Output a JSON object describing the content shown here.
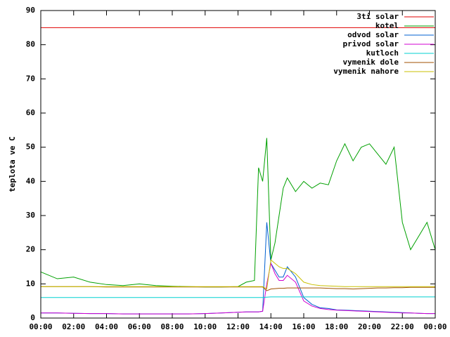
{
  "chart_data": {
    "type": "line",
    "ylabel": "teplota ve C",
    "x": [
      0,
      1,
      2,
      3,
      4,
      5,
      6,
      7,
      8,
      9,
      10,
      11,
      12,
      12.5,
      13,
      13.25,
      13.5,
      13.75,
      14,
      14.25,
      14.5,
      14.75,
      15,
      15.5,
      16,
      16.5,
      17,
      17.5,
      18,
      18.5,
      19,
      19.5,
      20,
      20.5,
      21,
      21.5,
      22,
      22.5,
      23,
      23.5,
      24
    ],
    "xlim": [
      0,
      24
    ],
    "xticks": [
      {
        "value": 0,
        "label": "00:00"
      },
      {
        "value": 2,
        "label": "02:00"
      },
      {
        "value": 4,
        "label": "04:00"
      },
      {
        "value": 6,
        "label": "06:00"
      },
      {
        "value": 8,
        "label": "08:00"
      },
      {
        "value": 10,
        "label": "10:00"
      },
      {
        "value": 12,
        "label": "12:00"
      },
      {
        "value": 14,
        "label": "14:00"
      },
      {
        "value": 16,
        "label": "16:00"
      },
      {
        "value": 18,
        "label": "18:00"
      },
      {
        "value": 20,
        "label": "20:00"
      },
      {
        "value": 22,
        "label": "22:00"
      },
      {
        "value": 24,
        "label": "00:00"
      }
    ],
    "ylim": [
      0,
      90
    ],
    "yticks": [
      0,
      10,
      20,
      30,
      40,
      50,
      60,
      70,
      80,
      90
    ],
    "legend": "upper right",
    "series": [
      {
        "name": "3ti solar",
        "color": "#e00000",
        "values": [
          85,
          85,
          85,
          85,
          85,
          85,
          85,
          85,
          85,
          85,
          85,
          85,
          85,
          85,
          85,
          85,
          85,
          85,
          85,
          85,
          85,
          85,
          85,
          85,
          85,
          85,
          85,
          85,
          85,
          85,
          85,
          85,
          85,
          85,
          85,
          85,
          85,
          85,
          85,
          85,
          85
        ]
      },
      {
        "name": "kotel",
        "color": "#00a000",
        "values": [
          13.5,
          11.5,
          12,
          10.5,
          9.8,
          9.5,
          10,
          9.5,
          9.3,
          9.2,
          9.1,
          9.1,
          9.2,
          10.5,
          11,
          44,
          40,
          52.7,
          17,
          22,
          30,
          38,
          41,
          37,
          40,
          38,
          39.5,
          39,
          46,
          51,
          46,
          50,
          51,
          48,
          45,
          50,
          28,
          20,
          24,
          28,
          20
        ]
      },
      {
        "name": "odvod solar",
        "color": "#0060d0",
        "values": [
          1.5,
          1.5,
          1.4,
          1.3,
          1.3,
          1.2,
          1.2,
          1.2,
          1.2,
          1.2,
          1.3,
          1.5,
          1.7,
          1.8,
          1.8,
          1.8,
          2,
          28,
          16,
          14,
          12,
          12,
          15,
          12,
          6,
          4,
          3,
          2.8,
          2.4,
          2.3,
          2.2,
          2.1,
          2,
          1.9,
          1.8,
          1.7,
          1.6,
          1.5,
          1.4,
          1.3,
          1.3
        ]
      },
      {
        "name": "privod solar",
        "color": "#d000d0",
        "values": [
          1.5,
          1.5,
          1.4,
          1.3,
          1.3,
          1.2,
          1.2,
          1.2,
          1.2,
          1.2,
          1.3,
          1.5,
          1.7,
          1.8,
          1.8,
          1.8,
          2,
          10,
          16,
          13,
          11,
          11,
          12.5,
          10.5,
          5,
          3.5,
          2.8,
          2.5,
          2.3,
          2.2,
          2.1,
          2,
          1.9,
          1.8,
          1.7,
          1.6,
          1.5,
          1.5,
          1.4,
          1.3,
          1.3
        ]
      },
      {
        "name": "kutloch",
        "color": "#00d0d0",
        "values": [
          6,
          6,
          6,
          6,
          6,
          6,
          6,
          6,
          6,
          6,
          6,
          6,
          6,
          6,
          6,
          6,
          6,
          6.1,
          6.2,
          6.2,
          6.2,
          6.2,
          6.2,
          6.2,
          6.2,
          6.2,
          6.2,
          6.2,
          6.2,
          6.2,
          6.2,
          6.2,
          6.2,
          6.2,
          6.2,
          6.2,
          6.2,
          6.2,
          6.2,
          6.2,
          6.2
        ]
      },
      {
        "name": "vymenik dole",
        "color": "#a05000",
        "values": [
          9.2,
          9.2,
          9.2,
          9.2,
          9.1,
          9.1,
          9.1,
          9.1,
          9.1,
          9.1,
          9.1,
          9.1,
          9.1,
          9.1,
          9.1,
          9.1,
          9.1,
          8,
          8.5,
          8.6,
          8.7,
          8.7,
          8.8,
          8.8,
          8.8,
          8.8,
          8.8,
          8.7,
          8.6,
          8.6,
          8.5,
          8.6,
          8.7,
          8.8,
          8.8,
          8.9,
          8.9,
          9,
          9,
          9,
          9
        ]
      },
      {
        "name": "vymenik nahore",
        "color": "#c8c000",
        "values": [
          9.2,
          9.2,
          9.2,
          9.2,
          9.2,
          9.2,
          9.2,
          9.2,
          9.2,
          9.2,
          9.2,
          9.2,
          9.2,
          9.2,
          9.2,
          9.2,
          9.2,
          8.5,
          17,
          16,
          15,
          14.5,
          14.5,
          13,
          10.5,
          9.8,
          9.5,
          9.4,
          9.3,
          9.2,
          9.2,
          9.2,
          9.2,
          9.2,
          9.2,
          9.2,
          9.2,
          9.2,
          9.2,
          9.2,
          9.2
        ]
      }
    ]
  }
}
